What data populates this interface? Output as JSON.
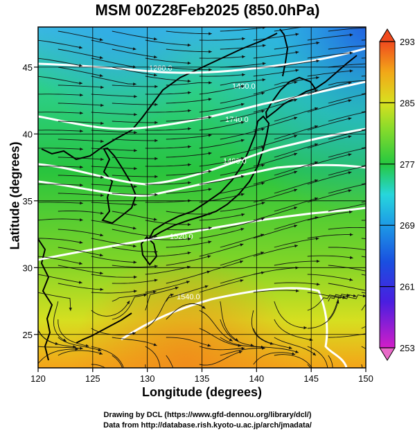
{
  "title": "MSM 00Z28Feb2025 (850.0hPa)",
  "x_axis": {
    "label": "Longitude (degrees)",
    "min": 120,
    "max": 150,
    "ticks": [
      "120",
      "125",
      "130",
      "135",
      "140",
      "145",
      "150"
    ]
  },
  "y_axis": {
    "label": "Latitude  (degrees)",
    "min": 22.5,
    "max": 48,
    "ticks": [
      "25",
      "30",
      "35",
      "40",
      "45"
    ]
  },
  "colorbar": {
    "min": 253,
    "max": 293,
    "ticks": [
      "293",
      "285",
      "277",
      "269",
      "261",
      "253"
    ],
    "colors": [
      "#d21ec8",
      "#1a2fd8",
      "#1d8fe6",
      "#27d6dc",
      "#25c840",
      "#8cdc2a",
      "#d8e020",
      "#f2a818",
      "#f04a1e"
    ]
  },
  "contours": {
    "color": "#ffffff",
    "labels": [
      "1260.0",
      "1400.0",
      "1740.0",
      "1480.0",
      "1520.0",
      "1540.0"
    ]
  },
  "credits": {
    "line1": "Drawing by DCL (https://www.gfd-dennou.org/library/dcl/)",
    "line2": "Data from http://database.rish.kyoto-u.ac.jp/arch/jmadata/"
  },
  "chart_data": {
    "type": "streamline-map",
    "title": "MSM 00Z28Feb2025 (850.0hPa)",
    "xlabel": "Longitude (degrees)",
    "ylabel": "Latitude  (degrees)",
    "xlim": [
      120,
      150
    ],
    "ylim": [
      22.5,
      48
    ],
    "colorbar_range": [
      253,
      293
    ],
    "grid": true
  }
}
